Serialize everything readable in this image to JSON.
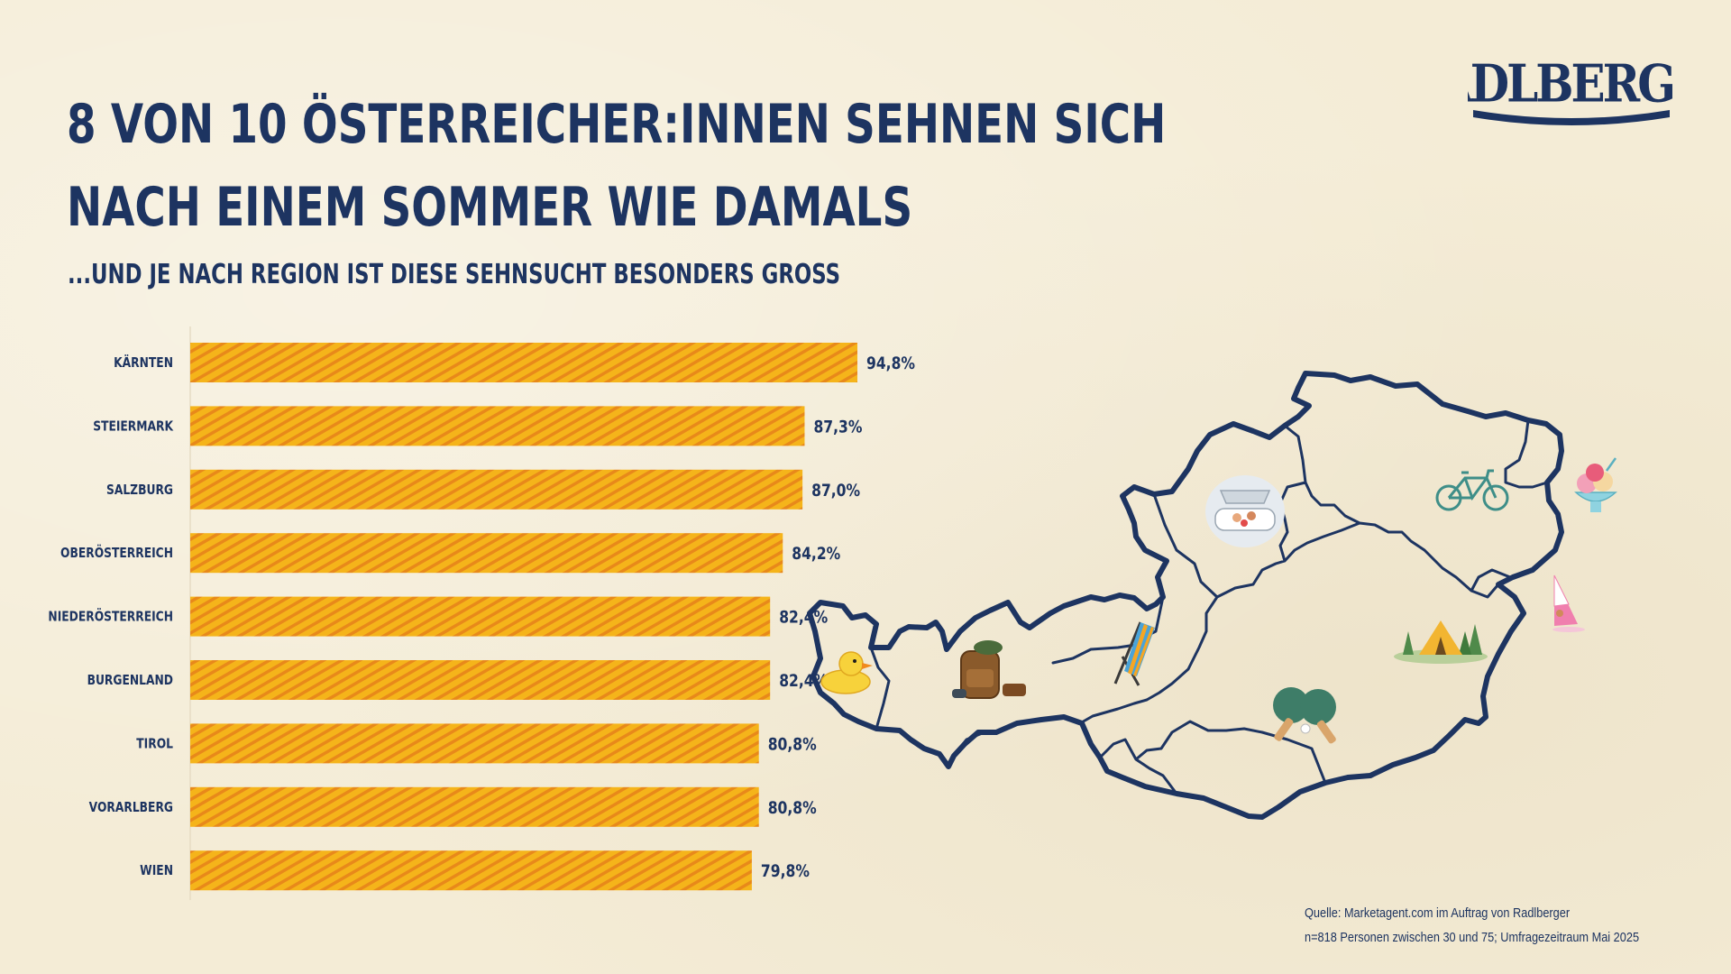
{
  "header": {
    "title_line1": "8 VON 10 ÖSTERREICHER:INNEN SEHNEN SICH",
    "title_line2": "NACH EINEM SOMMER WIE DAMALS",
    "subtitle": "...UND JE NACH REGION IST DIESE SEHNSUCHT BESONDERS GROSS"
  },
  "brand": {
    "logo_text": "RADLBERGER"
  },
  "chart_data": {
    "type": "bar",
    "orientation": "horizontal",
    "categories": [
      "KÄRNTEN",
      "STEIERMARK",
      "SALZBURG",
      "OBERÖSTERREICH",
      "NIEDERÖSTERREICH",
      "BURGENLAND",
      "TIROL",
      "VORARLBERG",
      "WIEN"
    ],
    "values": [
      94.8,
      87.3,
      87.0,
      84.2,
      82.4,
      82.4,
      80.8,
      80.8,
      79.8
    ],
    "value_labels": [
      "94,8%",
      "87,3%",
      "87,0%",
      "84,2%",
      "82,4%",
      "82,4%",
      "80,8%",
      "80,8%",
      "79,8%"
    ],
    "bar_colors": [
      "#f5b41a",
      "#e8891a"
    ]
  },
  "map": {
    "icons": [
      "rubber-duck-icon",
      "backpack-icon",
      "deck-chair-icon",
      "boat-icon",
      "table-tennis-icon",
      "bicycle-icon",
      "tent-icon",
      "ice-cream-icon",
      "windsurf-icon"
    ],
    "outline_color": "#1d3461"
  },
  "source": {
    "line1": "Quelle: Marketagent.com im Auftrag von Radlberger",
    "line2": "n=818 Personen zwischen 30 und 75; Umfragezeitraum Mai 2025"
  },
  "colors": {
    "background": "#f4ecd6",
    "text": "#1d3461",
    "bar_primary": "#f5b41a",
    "bar_stripe": "#e8891a"
  }
}
